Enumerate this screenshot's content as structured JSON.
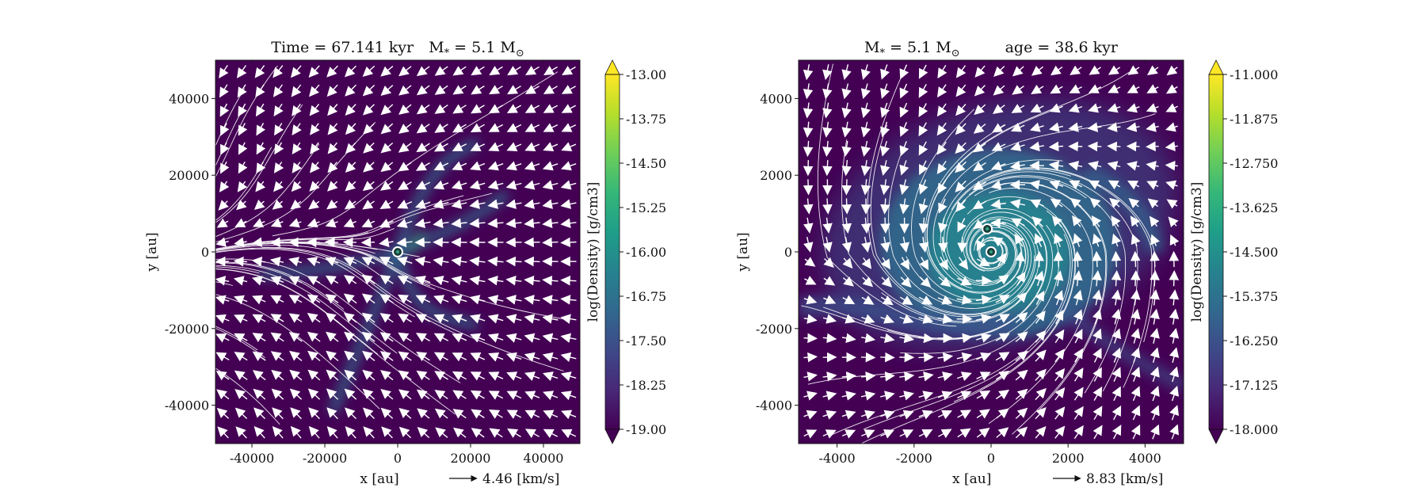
{
  "figure": {
    "colors": {
      "background": "#440154",
      "filament": "#2e6f8e",
      "core": "#2fa17a",
      "stream": "#ffffff",
      "colormap_stops": [
        "#440154",
        "#482878",
        "#3e4989",
        "#31688e",
        "#26828e",
        "#1f9e89",
        "#35b779",
        "#6ece58",
        "#b5de2b",
        "#fde725"
      ]
    }
  },
  "chart_data": [
    {
      "type": "heatmap",
      "title": "Time = 67.141 kyr   M$_*$ = 5.1 M$_\\odot$",
      "title_parts": {
        "left": "Time = 67.141 kyr",
        "mass": "M",
        "mass_sub": "*",
        "eq": " = 5.1 M",
        "sun_sub": "⊙"
      },
      "xlabel": "x [au]",
      "ylabel": "y [au]",
      "xlim": [
        -50000,
        50000
      ],
      "ylim": [
        -50000,
        50000
      ],
      "x_ticks": [
        -40000,
        -20000,
        0,
        20000,
        40000
      ],
      "y_ticks": [
        -40000,
        -20000,
        0,
        20000,
        40000
      ],
      "x_tick_labels": [
        "-40000",
        "-20000",
        "0",
        "20000",
        "40000"
      ],
      "y_tick_labels": [
        "-40000",
        "-20000",
        "0",
        "20000",
        "40000"
      ],
      "colorbar": {
        "label": "log(Density) [g/cm3]",
        "range": [
          -19.0,
          -13.0
        ],
        "ticks": [
          "-13.00",
          "-13.75",
          "-14.50",
          "-15.25",
          "-16.00",
          "-16.75",
          "-17.50",
          "-18.25",
          "-19.00"
        ]
      },
      "velocity_key": {
        "label": "4.46 [km/s]"
      },
      "sink_particles": [
        {
          "x": 0,
          "y": 0
        }
      ],
      "flow": "converging_filaments",
      "grid": false
    },
    {
      "type": "heatmap",
      "title": "M$_*$ = 5.1 M$_\\odot$        age = 38.6 kyr",
      "title_parts": {
        "mass": "M",
        "mass_sub": "*",
        "eq": " = 5.1 M",
        "sun_sub": "⊙",
        "right": "age = 38.6 kyr"
      },
      "xlabel": "x [au]",
      "ylabel": "y [au]",
      "xlim": [
        -5000,
        5000
      ],
      "ylim": [
        -5000,
        5000
      ],
      "x_ticks": [
        -4000,
        -2000,
        0,
        2000,
        4000
      ],
      "y_ticks": [
        -4000,
        -2000,
        0,
        2000,
        4000
      ],
      "x_tick_labels": [
        "-4000",
        "-2000",
        "0",
        "2000",
        "4000"
      ],
      "y_tick_labels": [
        "-4000",
        "-2000",
        "0",
        "2000",
        "4000"
      ],
      "colorbar": {
        "label": "log(Density) [g/cm3]",
        "range": [
          -18.0,
          -11.0
        ],
        "ticks": [
          "-11.000",
          "-11.875",
          "-12.750",
          "-13.625",
          "-14.500",
          "-15.375",
          "-16.250",
          "-17.125",
          "-18.000"
        ]
      },
      "velocity_key": {
        "label": "8.83 [km/s]"
      },
      "sink_particles": [
        {
          "x": -100,
          "y": 600
        },
        {
          "x": 0,
          "y": 0
        }
      ],
      "flow": "rotating_disk",
      "grid": false
    }
  ]
}
